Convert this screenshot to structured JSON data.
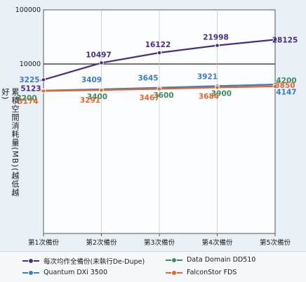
{
  "chart_data": {
    "type": "line",
    "yscale": "log",
    "ylim": [
      1000,
      100000
    ],
    "y_ticks": [
      "100000",
      "10000"
    ],
    "ylabel": "累積空間消耗量(MB)(越低越好)",
    "categories": [
      "第1次備份",
      "第2次備份",
      "第3次備份",
      "第4次備份",
      "第5次備份"
    ],
    "series": [
      {
        "name": "每次均作全備份(未執行De-Dupe)",
        "color": "#4b2d83",
        "values": [
          5123,
          10497,
          16122,
          21998,
          28125
        ]
      },
      {
        "name": "Data Domain DD510",
        "color": "#3c8d62",
        "values": [
          3200,
          3400,
          3600,
          3900,
          4200
        ]
      },
      {
        "name": "Quantum DXi 3500",
        "color": "#3d7cc9",
        "values": [
          3225,
          3409,
          3645,
          3921,
          4147
        ]
      },
      {
        "name": "FalconStor FDS",
        "color": "#e5672c",
        "values": [
          3174,
          3291,
          3467,
          3684,
          3850
        ]
      }
    ],
    "legend": "bottom",
    "grid": true
  }
}
